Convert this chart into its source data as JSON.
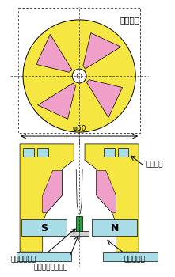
{
  "impeller_label": "インペラ",
  "magnetic_bearing_label": "磁気軸受",
  "ceramic_shaft_label": "セラミック軸",
  "polyethylene_label": "ポリエチレン受け",
  "drive_motor_label": "駆動モータ",
  "dimension_label": "φ50",
  "S_label": "S",
  "N_label": "N",
  "yellow": "#F5E642",
  "pink": "#F0A0C8",
  "cyan": "#A8DDE8",
  "green": "#28A040",
  "white": "#FFFFFF",
  "black": "#000000",
  "bg_color": "#FFFFFF"
}
